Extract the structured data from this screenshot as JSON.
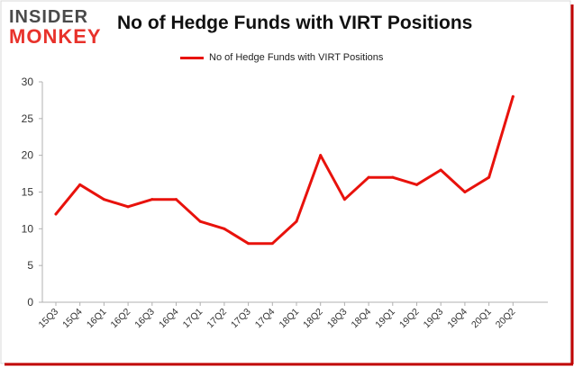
{
  "logo": {
    "line1": "INSIDER",
    "line2": "MONKEY"
  },
  "chart_data": {
    "type": "line",
    "title": "No of Hedge Funds with VIRT Positions",
    "xlabel": "",
    "ylabel": "",
    "ylim": [
      0,
      30
    ],
    "yticks": [
      0,
      5,
      10,
      15,
      20,
      25,
      30
    ],
    "grid": false,
    "legend_position": "top-center",
    "categories": [
      "15Q3",
      "15Q4",
      "16Q1",
      "16Q2",
      "16Q3",
      "16Q4",
      "17Q1",
      "17Q2",
      "17Q3",
      "17Q4",
      "18Q1",
      "18Q2",
      "18Q3",
      "18Q4",
      "19Q1",
      "19Q2",
      "19Q3",
      "19Q4",
      "20Q1",
      "20Q2"
    ],
    "series": [
      {
        "name": "No of Hedge Funds with VIRT Positions",
        "color": "#e8120c",
        "values": [
          12,
          16,
          14,
          13,
          14,
          14,
          11,
          10,
          8,
          8,
          11,
          20,
          14,
          17,
          17,
          16,
          18,
          15,
          17,
          28
        ]
      }
    ]
  }
}
